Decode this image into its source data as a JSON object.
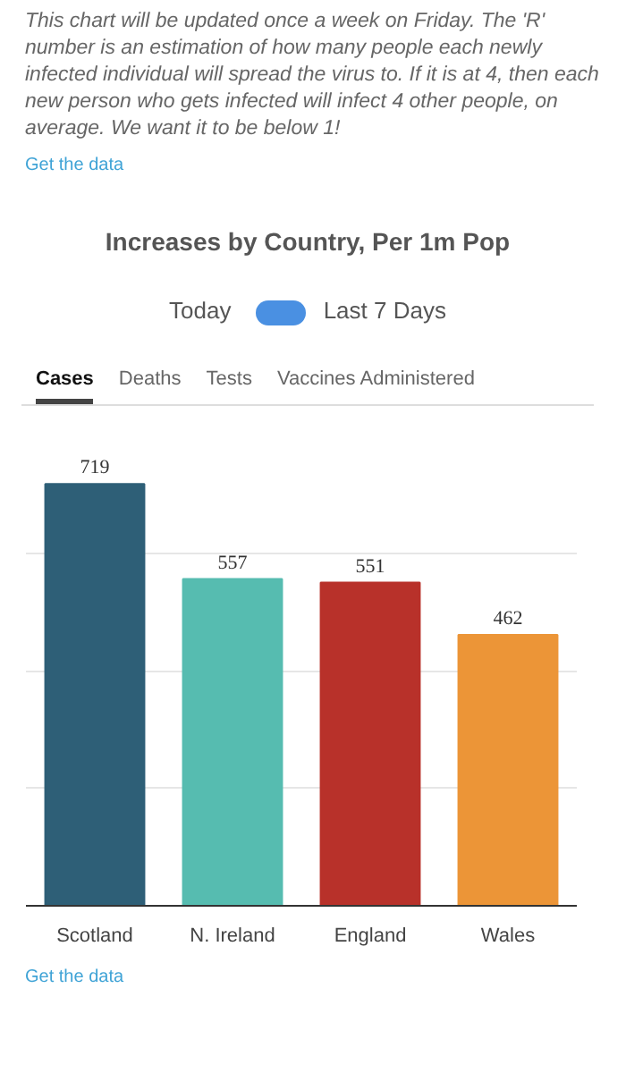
{
  "chart_data": {
    "type": "bar",
    "title": "Increases by Country, Per 1m Pop",
    "categories": [
      "Scotland",
      "N. Ireland",
      "England",
      "Wales"
    ],
    "values": [
      719,
      557,
      551,
      462
    ],
    "colors": [
      "#2e5f77",
      "#56bcb0",
      "#b8312a",
      "#ec9537"
    ],
    "data_labels": true,
    "yticks": [
      {
        "value": 0,
        "label": null
      },
      {
        "value": 200,
        "label": null
      },
      {
        "value": 400,
        "label": null
      },
      {
        "value": 600,
        "label": null
      }
    ],
    "grid": "y",
    "tick_labels": "x",
    "annotations": [
      "This chart will be updated once a week on Friday. The 'R' number is an estimation of how many people each newly infected individual will spread the virus to. If it is at 4, then each new person who gets infected will infect 4 other people, on average. We want it to be below 1!",
      "Get the data",
      "Today",
      "Last 7 Days",
      "Cases",
      "Deaths",
      "Tests",
      "Vaccines Administered",
      "Get the data"
    ]
  }
}
